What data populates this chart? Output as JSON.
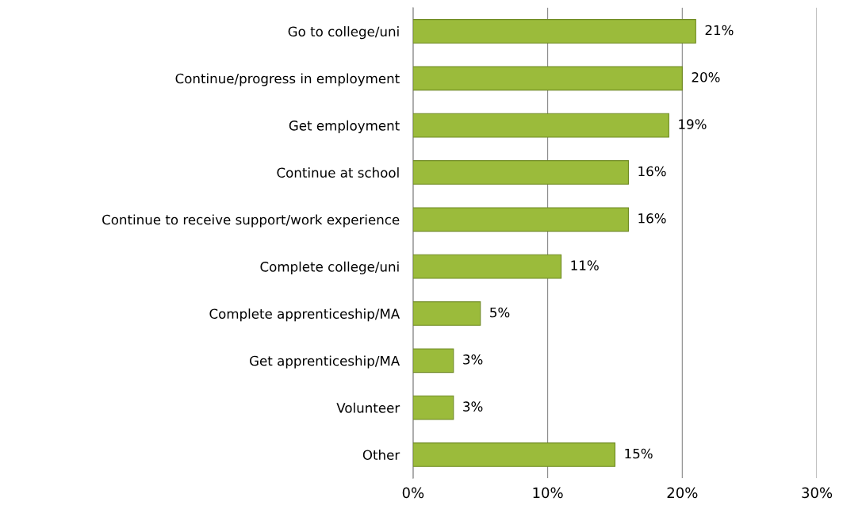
{
  "chart_data": {
    "type": "bar",
    "orientation": "horizontal",
    "categories": [
      "Go to college/uni",
      "Continue/progress in employment",
      "Get employment",
      "Continue at school",
      "Continue to receive support/work experience",
      "Complete college/uni",
      "Complete apprenticeship/MA",
      "Get apprenticeship/MA",
      "Volunteer",
      "Other"
    ],
    "values": [
      21,
      20,
      19,
      16,
      16,
      11,
      5,
      3,
      3,
      15
    ],
    "value_labels": [
      "21%",
      "20%",
      "19%",
      "16%",
      "16%",
      "11%",
      "5%",
      "3%",
      "3%",
      "15%"
    ],
    "color": "#9bbb3b",
    "xlim": [
      0,
      30
    ],
    "xticks": [
      {
        "value": 0,
        "label": "0%"
      },
      {
        "value": 10,
        "label": "10%"
      },
      {
        "value": 20,
        "label": "20%"
      },
      {
        "value": 30,
        "label": "30%"
      }
    ],
    "grid": "x",
    "legend": false
  }
}
